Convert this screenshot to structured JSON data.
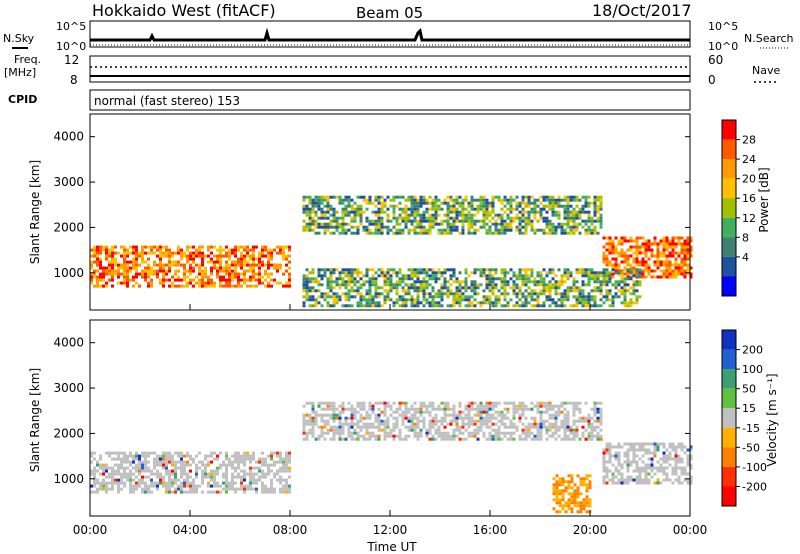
{
  "header": {
    "station": "Hokkaido West (fitACF)",
    "beam": "Beam 05",
    "date": "18/Oct/2017"
  },
  "small_panels": {
    "nsky_label": "N.Sky",
    "nsearch_label": "N.Search",
    "freq_label": "Freq.",
    "freq_unit": "[MHz]",
    "nave_label": "Nave",
    "cpid_label": "CPID",
    "cpid_text": "normal (fast stereo) 153",
    "noise_ticks": [
      "10^5",
      "10^0"
    ],
    "freq_ticks": [
      "12",
      "8"
    ],
    "nave_ticks": [
      "60",
      "0"
    ]
  },
  "chart_data": [
    {
      "type": "heatmap",
      "title": "",
      "xlabel": "",
      "ylabel": "Slant Range [km]",
      "colorbar_label": "Power [dB]",
      "colorbar_ticks": [
        "28",
        "24",
        "20",
        "16",
        "12",
        "8",
        "4"
      ],
      "colorbar_colors": [
        "#ff0000",
        "#ff5a00",
        "#ff9a00",
        "#ffc000",
        "#a0c000",
        "#40b060",
        "#408070",
        "#2050a0",
        "#0000ff"
      ],
      "ylim": [
        180,
        4500
      ],
      "y_ticks": [
        "4000",
        "3000",
        "2000",
        "1000"
      ],
      "xlim": [
        "00:00",
        "24:00"
      ],
      "regions": [
        {
          "t0": 0.0,
          "t1": 8.0,
          "r0": 700,
          "r1": 1600,
          "level": "high"
        },
        {
          "t0": 8.5,
          "t1": 20.5,
          "r0": 1900,
          "r1": 2700,
          "level": "mid"
        },
        {
          "t0": 20.5,
          "t1": 24.0,
          "r0": 900,
          "r1": 1800,
          "level": "high"
        },
        {
          "t0": 8.5,
          "t1": 22.0,
          "r0": 300,
          "r1": 1100,
          "level": "mid"
        }
      ]
    },
    {
      "type": "heatmap",
      "title": "",
      "xlabel": "Time UT",
      "ylabel": "Slant Range [km]",
      "colorbar_label": "Velocity [m s⁻¹]",
      "colorbar_ticks": [
        "200",
        "100",
        "50",
        "15",
        "-15",
        "-50",
        "-100",
        "-200"
      ],
      "colorbar_colors": [
        "#1030c0",
        "#2060d0",
        "#3aa070",
        "#60c040",
        "#c0c0c0",
        "#ffb000",
        "#ff8000",
        "#ff3000",
        "#ff0000"
      ],
      "ylim": [
        180,
        4500
      ],
      "y_ticks": [
        "4000",
        "3000",
        "2000",
        "1000"
      ],
      "x_ticks": [
        "00:00",
        "04:00",
        "08:00",
        "12:00",
        "16:00",
        "20:00",
        "00:00"
      ],
      "regions": [
        {
          "t0": 0.0,
          "t1": 8.0,
          "r0": 700,
          "r1": 1600,
          "level": "grey"
        },
        {
          "t0": 8.5,
          "t1": 20.5,
          "r0": 1900,
          "r1": 2700,
          "level": "grey"
        },
        {
          "t0": 20.5,
          "t1": 24.0,
          "r0": 900,
          "r1": 1800,
          "level": "grey"
        },
        {
          "t0": 18.5,
          "t1": 20.0,
          "r0": 300,
          "r1": 1100,
          "level": "neg"
        }
      ]
    }
  ]
}
